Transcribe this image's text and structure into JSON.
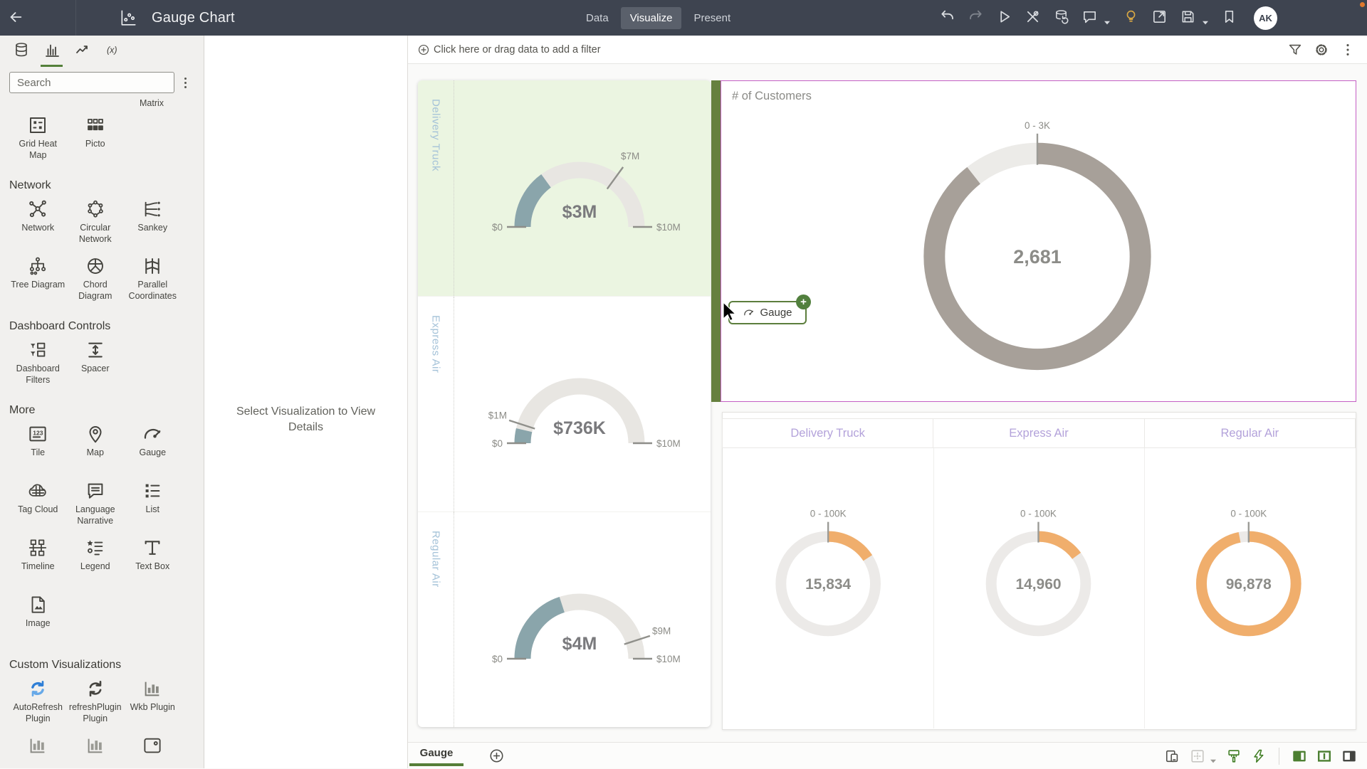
{
  "topbar": {
    "title": "Gauge Chart",
    "tabs": [
      {
        "label": "Data",
        "active": false
      },
      {
        "label": "Visualize",
        "active": true
      },
      {
        "label": "Present",
        "active": false
      }
    ],
    "actions": [
      {
        "icon": "undo"
      },
      {
        "icon": "redo",
        "disabled": true
      },
      {
        "icon": "play"
      },
      {
        "icon": "tools"
      },
      {
        "icon": "refresh-data"
      },
      {
        "icon": "comments",
        "caret": true
      },
      {
        "icon": "insights"
      },
      {
        "icon": "open-window"
      },
      {
        "icon": "save",
        "caret": true
      },
      {
        "icon": "bookmark"
      }
    ],
    "avatar": "AK"
  },
  "sidebar": {
    "panel_tabs": [
      "data",
      "visualizations",
      "analytics",
      "functions"
    ],
    "active_panel_tab": "visualizations",
    "search_placeholder": "Search",
    "scrolled_label": "Matrix",
    "groups": [
      {
        "header": "",
        "items": [
          {
            "label": "Grid Heat Map",
            "icon": "grid-heat-map"
          },
          {
            "label": "Picto",
            "icon": "picto"
          }
        ]
      },
      {
        "header": "Network",
        "items": [
          {
            "label": "Network",
            "icon": "network"
          },
          {
            "label": "Circular Network",
            "icon": "circular-network"
          },
          {
            "label": "Sankey",
            "icon": "sankey"
          },
          {
            "label": "Tree Diagram",
            "icon": "tree-diagram"
          },
          {
            "label": "Chord Diagram",
            "icon": "chord-diagram"
          },
          {
            "label": "Parallel Coordinates",
            "icon": "parallel-coordinates"
          }
        ]
      },
      {
        "header": "Dashboard Controls",
        "items": [
          {
            "label": "Dashboard Filters",
            "icon": "dashboard-filters"
          },
          {
            "label": "Spacer",
            "icon": "spacer"
          }
        ]
      },
      {
        "header": "More",
        "items": [
          {
            "label": "Tile",
            "icon": "tile"
          },
          {
            "label": "Map",
            "icon": "map"
          },
          {
            "label": "Gauge",
            "icon": "gauge"
          },
          {
            "label": "Tag Cloud",
            "icon": "tag-cloud"
          },
          {
            "label": "Language Narrative",
            "icon": "language-narrative"
          },
          {
            "label": "List",
            "icon": "list"
          },
          {
            "label": "Timeline",
            "icon": "timeline"
          },
          {
            "label": "Legend",
            "icon": "legend"
          },
          {
            "label": "Text Box",
            "icon": "text-box"
          },
          {
            "label": "Image",
            "icon": "image"
          }
        ]
      },
      {
        "header": "Custom Visualizations",
        "items": [
          {
            "label": "AutoRefresh Plugin",
            "icon": "autorefresh"
          },
          {
            "label": "refreshPlugin Plugin",
            "icon": "refresh-plugin"
          },
          {
            "label": "Wkb Plugin",
            "icon": "wkb-plugin"
          },
          {
            "label": "",
            "icon": "bars-partial"
          },
          {
            "label": "",
            "icon": "bars-partial"
          },
          {
            "label": "",
            "icon": "image-partial"
          }
        ]
      }
    ]
  },
  "details_panel": {
    "message": "Select Visualization to View Details"
  },
  "filter_bar": {
    "prompt": "Click here or drag data to add a filter",
    "actions": [
      "filter",
      "settings",
      "menu"
    ]
  },
  "drag_chip": {
    "label": "Gauge"
  },
  "canvas_tabs": {
    "active": "Gauge"
  },
  "chart_data": [
    {
      "type": "gauge",
      "id": "sales-gauges-by-ship-mode",
      "min": 0,
      "max": 10000000,
      "min_label": "$0",
      "max_label": "$10M",
      "rows": [
        {
          "category": "Delivery Truck",
          "value": 3000000,
          "value_label": "$3M",
          "threshold": 7000000,
          "threshold_label": "$7M",
          "highlighted": true
        },
        {
          "category": "Express Air",
          "value": 736000,
          "value_label": "$736K",
          "threshold": 1000000,
          "threshold_label": "$1M",
          "highlighted": false
        },
        {
          "category": "Regular Air",
          "value": 4000000,
          "value_label": "$4M",
          "threshold": 9000000,
          "threshold_label": "$9M",
          "highlighted": false
        }
      ]
    },
    {
      "type": "donut-gauge",
      "title": "# of Customers",
      "min": 0,
      "max": 3000,
      "range_label": "0 - 3K",
      "value": 2681,
      "value_label": "2,681"
    },
    {
      "type": "donut-gauge-trellis",
      "id": "customers-by-ship-mode",
      "columns": [
        "Delivery Truck",
        "Express Air",
        "Regular Air"
      ],
      "min": 0,
      "max": 100000,
      "range_label": "0 - 100K",
      "values": [
        15834,
        14960,
        96878
      ],
      "value_labels": [
        "15,834",
        "14,960",
        "96,878"
      ]
    }
  ],
  "colors": {
    "topbar_bg": "#3e4450",
    "accent_green": "#567e38",
    "drop_indicator_green": "#66803f",
    "selection_magenta": "#c45ec4",
    "row_highlight": "#ebf5e1",
    "row_label_blue": "#a4c2d8",
    "gauge_fill": "#8aa5ab",
    "gauge_track": "#e8e6e2",
    "donut_fill": "#a7a099",
    "donut_small_fill": "#f0ae6c",
    "donut_track": "#eceae8",
    "column_header_lavender": "#b3a2da",
    "value_gray": "#7a7a7d",
    "record_dot": "#e0782e"
  }
}
